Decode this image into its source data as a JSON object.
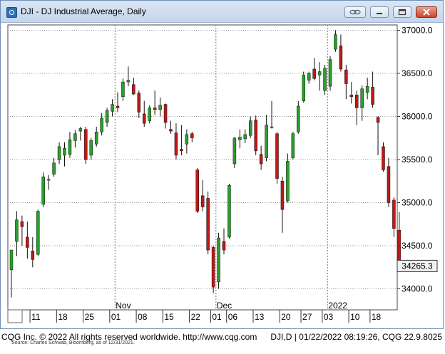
{
  "window": {
    "title": "DJI - DJ Industrial Average, Daily",
    "colors": {
      "frame": "#6f8fb7",
      "titlebar": "#c4d5ea"
    }
  },
  "footer": {
    "copyright": "CQG Inc. © 2022 All rights reserved worldwide. http://www.cqg.com",
    "status": "DJI,D | 01/22/2022 08:19:26, CQG 22.9.8025",
    "source": "Source: Charles Schwab, Bloomberg, as of 12/31/2021."
  },
  "chart_data": {
    "type": "candlestick",
    "title": "",
    "ylim": [
      33800,
      37150
    ],
    "y_ticks": [
      34000,
      34500,
      35000,
      35500,
      36000,
      36500,
      37000
    ],
    "y_tick_labels": [
      "34000.0",
      "34500.0",
      "35000.0",
      "35500.0",
      "36000.0",
      "36500.0",
      "37000.0"
    ],
    "x_day_labels": [
      {
        "i": 4,
        "label": "11"
      },
      {
        "i": 9,
        "label": "18"
      },
      {
        "i": 14,
        "label": "25"
      },
      {
        "i": 19,
        "label": "01"
      },
      {
        "i": 24,
        "label": "08"
      },
      {
        "i": 29,
        "label": "15"
      },
      {
        "i": 34,
        "label": "22"
      },
      {
        "i": 38,
        "label": "01"
      },
      {
        "i": 41,
        "label": "06"
      },
      {
        "i": 46,
        "label": "13"
      },
      {
        "i": 51,
        "label": "20"
      },
      {
        "i": 55,
        "label": "27"
      },
      {
        "i": 59,
        "label": "03"
      },
      {
        "i": 64,
        "label": "10"
      },
      {
        "i": 68,
        "label": "18"
      }
    ],
    "x_month_labels": [
      {
        "i": 20,
        "label": "Nov"
      },
      {
        "i": 39,
        "label": "Dec"
      },
      {
        "i": 60,
        "label": "2022"
      }
    ],
    "grid": true,
    "current_price_label": "34265.3",
    "current_price": 34265.3,
    "up_color": "#2aa02a",
    "down_color": "#c01818",
    "candles": [
      {
        "o": 34220,
        "h": 34420,
        "l": 33900,
        "c": 34450
      },
      {
        "o": 34550,
        "h": 34900,
        "l": 34380,
        "c": 34800
      },
      {
        "o": 34780,
        "h": 34850,
        "l": 34500,
        "c": 34720
      },
      {
        "o": 34600,
        "h": 34780,
        "l": 34350,
        "c": 34480
      },
      {
        "o": 34440,
        "h": 34600,
        "l": 34250,
        "c": 34340
      },
      {
        "o": 34400,
        "h": 34920,
        "l": 34380,
        "c": 34900
      },
      {
        "o": 34980,
        "h": 35350,
        "l": 34950,
        "c": 35300
      },
      {
        "o": 35260,
        "h": 35320,
        "l": 35150,
        "c": 35270
      },
      {
        "o": 35330,
        "h": 35520,
        "l": 35300,
        "c": 35460
      },
      {
        "o": 35500,
        "h": 35700,
        "l": 35450,
        "c": 35650
      },
      {
        "o": 35550,
        "h": 35700,
        "l": 35420,
        "c": 35630
      },
      {
        "o": 35560,
        "h": 35820,
        "l": 35520,
        "c": 35730
      },
      {
        "o": 35720,
        "h": 35840,
        "l": 35640,
        "c": 35800
      },
      {
        "o": 35830,
        "h": 35880,
        "l": 35720,
        "c": 35860
      },
      {
        "o": 35850,
        "h": 35880,
        "l": 35450,
        "c": 35500
      },
      {
        "o": 35550,
        "h": 35750,
        "l": 35500,
        "c": 35720
      },
      {
        "o": 35680,
        "h": 35880,
        "l": 35650,
        "c": 35820
      },
      {
        "o": 35820,
        "h": 36040,
        "l": 35780,
        "c": 35980
      },
      {
        "o": 35930,
        "h": 36100,
        "l": 35880,
        "c": 36070
      },
      {
        "o": 36060,
        "h": 36200,
        "l": 36000,
        "c": 36140
      },
      {
        "o": 36120,
        "h": 36280,
        "l": 36050,
        "c": 36100
      },
      {
        "o": 36230,
        "h": 36440,
        "l": 36180,
        "c": 36400
      },
      {
        "o": 36400,
        "h": 36580,
        "l": 36350,
        "c": 36420
      },
      {
        "o": 36370,
        "h": 36450,
        "l": 36250,
        "c": 36260
      },
      {
        "o": 36270,
        "h": 36300,
        "l": 35980,
        "c": 36050
      },
      {
        "o": 36030,
        "h": 36180,
        "l": 35880,
        "c": 35920
      },
      {
        "o": 35950,
        "h": 36130,
        "l": 35920,
        "c": 36100
      },
      {
        "o": 36100,
        "h": 36300,
        "l": 36020,
        "c": 36080
      },
      {
        "o": 36080,
        "h": 36220,
        "l": 36000,
        "c": 36130
      },
      {
        "o": 36140,
        "h": 36150,
        "l": 35860,
        "c": 35930
      },
      {
        "o": 35850,
        "h": 35950,
        "l": 35800,
        "c": 35830
      },
      {
        "o": 35810,
        "h": 35920,
        "l": 35500,
        "c": 35550
      },
      {
        "o": 35620,
        "h": 35900,
        "l": 35550,
        "c": 35600
      },
      {
        "o": 35680,
        "h": 35850,
        "l": 35570,
        "c": 35790
      },
      {
        "o": 35800,
        "h": 35820,
        "l": 35700,
        "c": 35750
      },
      {
        "o": 35380,
        "h": 35400,
        "l": 34880,
        "c": 34900
      },
      {
        "o": 35080,
        "h": 35260,
        "l": 34900,
        "c": 34950
      },
      {
        "o": 35050,
        "h": 35130,
        "l": 34400,
        "c": 34450
      },
      {
        "o": 34480,
        "h": 34500,
        "l": 33950,
        "c": 34020
      },
      {
        "o": 34080,
        "h": 34650,
        "l": 34000,
        "c": 34590
      },
      {
        "o": 34550,
        "h": 34700,
        "l": 34400,
        "c": 34450
      },
      {
        "o": 34600,
        "h": 35220,
        "l": 34580,
        "c": 35200
      },
      {
        "o": 35450,
        "h": 35760,
        "l": 35400,
        "c": 35750
      },
      {
        "o": 35730,
        "h": 35850,
        "l": 35630,
        "c": 35760
      },
      {
        "o": 35740,
        "h": 35850,
        "l": 35690,
        "c": 35790
      },
      {
        "o": 35780,
        "h": 36000,
        "l": 35750,
        "c": 35950
      },
      {
        "o": 35960,
        "h": 36010,
        "l": 35550,
        "c": 35600
      },
      {
        "o": 35560,
        "h": 35660,
        "l": 35380,
        "c": 35450
      },
      {
        "o": 35520,
        "h": 36020,
        "l": 35480,
        "c": 35900
      },
      {
        "o": 35880,
        "h": 36180,
        "l": 35860,
        "c": 35880
      },
      {
        "o": 35800,
        "h": 35820,
        "l": 35220,
        "c": 35280
      },
      {
        "o": 35250,
        "h": 35300,
        "l": 34650,
        "c": 34920
      },
      {
        "o": 35020,
        "h": 35570,
        "l": 35000,
        "c": 35480
      },
      {
        "o": 35520,
        "h": 35820,
        "l": 35500,
        "c": 35800
      },
      {
        "o": 35820,
        "h": 36180,
        "l": 35800,
        "c": 36120
      },
      {
        "o": 36180,
        "h": 36520,
        "l": 36160,
        "c": 36480
      },
      {
        "o": 36420,
        "h": 36520,
        "l": 36380,
        "c": 36500
      },
      {
        "o": 36550,
        "h": 36680,
        "l": 36420,
        "c": 36440
      },
      {
        "o": 36480,
        "h": 36630,
        "l": 36300,
        "c": 36520
      },
      {
        "o": 36300,
        "h": 36600,
        "l": 36250,
        "c": 36560
      },
      {
        "o": 36350,
        "h": 36700,
        "l": 36300,
        "c": 36660
      },
      {
        "o": 36780,
        "h": 37000,
        "l": 36750,
        "c": 36950
      },
      {
        "o": 36820,
        "h": 36950,
        "l": 36520,
        "c": 36550
      },
      {
        "o": 36540,
        "h": 36600,
        "l": 36200,
        "c": 36380
      },
      {
        "o": 36250,
        "h": 36400,
        "l": 36150,
        "c": 36230
      },
      {
        "o": 36250,
        "h": 36300,
        "l": 35900,
        "c": 36100
      },
      {
        "o": 36100,
        "h": 36360,
        "l": 35950,
        "c": 36320
      },
      {
        "o": 36280,
        "h": 36450,
        "l": 36200,
        "c": 36350
      },
      {
        "o": 36340,
        "h": 36520,
        "l": 36100,
        "c": 36140
      },
      {
        "o": 35990,
        "h": 36000,
        "l": 35550,
        "c": 35930
      },
      {
        "o": 35650,
        "h": 35700,
        "l": 35360,
        "c": 35380
      },
      {
        "o": 35420,
        "h": 35520,
        "l": 34950,
        "c": 35000
      },
      {
        "o": 35030,
        "h": 35060,
        "l": 34600,
        "c": 34700
      },
      {
        "o": 34680,
        "h": 34890,
        "l": 34200,
        "c": 34265
      }
    ]
  }
}
